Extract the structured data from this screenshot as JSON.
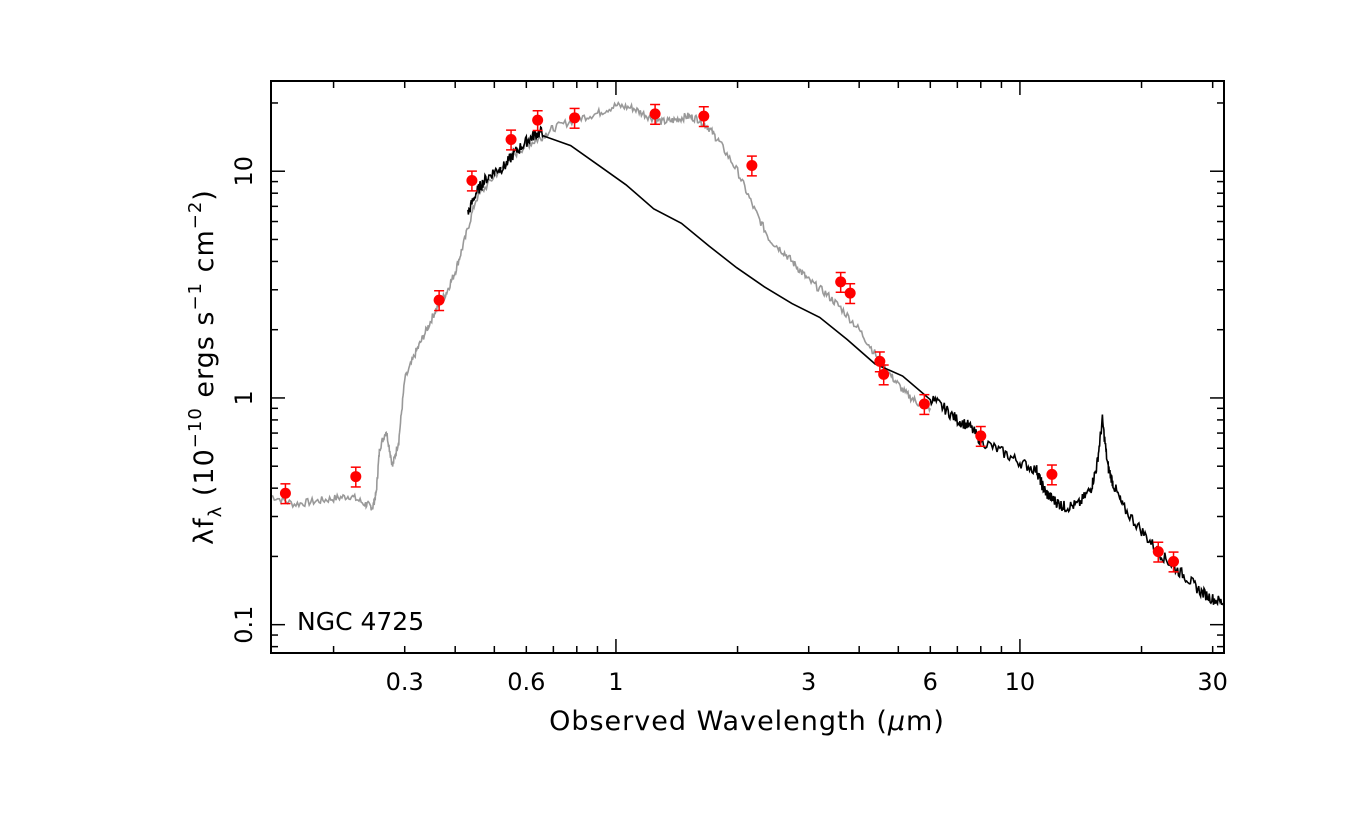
{
  "chart_data": {
    "type": "scatter",
    "title": "",
    "annotation": "NGC 4725",
    "xlabel_parts": {
      "main": "Observed Wavelength (",
      "mu": "μ",
      "unit": "m)"
    },
    "ylabel_parts": {
      "lambda": "λf",
      "sub": "λ",
      "open": " (10",
      "exp1": "−10",
      "mid": " ergs s",
      "exp2": "−1",
      "mid2": " cm",
      "exp3": "−2",
      "close": ")"
    },
    "x_scale": "log",
    "y_scale": "log",
    "xlim": [
      0.14,
      32
    ],
    "ylim": [
      0.075,
      25
    ],
    "x_ticks": [
      {
        "value": 0.3,
        "label": "0.3"
      },
      {
        "value": 0.6,
        "label": "0.6"
      },
      {
        "value": 1,
        "label": "1"
      },
      {
        "value": 3,
        "label": "3"
      },
      {
        "value": 6,
        "label": "6"
      },
      {
        "value": 10,
        "label": "10"
      },
      {
        "value": 30,
        "label": "30"
      }
    ],
    "y_ticks": [
      {
        "value": 0.1,
        "label": "0.1"
      },
      {
        "value": 1,
        "label": "1"
      },
      {
        "value": 10,
        "label": "10"
      }
    ],
    "grid": false,
    "legend": "none",
    "colors": {
      "photometry": "#ff0000",
      "model": "#999999",
      "observed": "#000000"
    },
    "series": [
      {
        "kind": "model",
        "color": "#999999",
        "x": [
          0.14,
          0.16,
          0.18,
          0.2,
          0.22,
          0.24,
          0.25,
          0.255,
          0.26,
          0.27,
          0.28,
          0.29,
          0.3,
          0.32,
          0.34,
          0.36,
          0.38,
          0.4,
          0.42,
          0.45,
          0.5,
          0.55,
          0.6,
          0.65,
          0.7,
          0.8,
          0.9,
          1.0,
          1.1,
          1.2,
          1.3,
          1.4,
          1.5,
          1.6,
          1.7,
          1.8,
          2.0,
          2.2,
          2.4,
          2.6,
          2.8,
          3.0,
          3.3,
          3.6,
          4.0,
          4.4,
          4.8,
          5.2,
          5.6,
          6.0
        ],
        "y": [
          0.37,
          0.34,
          0.35,
          0.36,
          0.37,
          0.34,
          0.33,
          0.38,
          0.6,
          0.72,
          0.5,
          0.65,
          1.2,
          1.6,
          2.0,
          2.5,
          2.9,
          3.6,
          4.8,
          7.5,
          9.5,
          11.5,
          13.0,
          14.0,
          15.5,
          17.0,
          18.0,
          19.5,
          19.0,
          17.5,
          16.5,
          16.8,
          17.5,
          17.0,
          15.5,
          13.5,
          10.0,
          6.8,
          5.0,
          4.4,
          3.8,
          3.3,
          2.9,
          2.5,
          2.0,
          1.55,
          1.25,
          1.05,
          0.95,
          0.9
        ]
      },
      {
        "kind": "observed",
        "color": "#000000",
        "x": [
          0.43,
          0.45,
          0.47,
          0.5,
          0.53,
          0.56,
          0.6,
          0.63,
          0.66,
          6.0,
          6.5,
          7.0,
          7.5,
          8.0,
          9.0,
          10.0,
          11.0,
          11.3,
          11.6,
          12.0,
          12.5,
          13.0,
          14.0,
          15.0,
          15.5,
          16.0,
          16.5,
          17.0,
          18.0,
          20.0,
          22.0,
          24.0,
          26.0,
          28.0,
          30.0,
          32.0
        ],
        "y": [
          6.5,
          8.0,
          9.0,
          10.0,
          10.5,
          12.0,
          13.5,
          14.5,
          15.0,
          1.0,
          0.9,
          0.8,
          0.75,
          0.65,
          0.58,
          0.52,
          0.48,
          0.42,
          0.38,
          0.36,
          0.34,
          0.33,
          0.34,
          0.4,
          0.5,
          0.8,
          0.5,
          0.42,
          0.33,
          0.26,
          0.21,
          0.18,
          0.16,
          0.14,
          0.13,
          0.125
        ]
      },
      {
        "kind": "photometry",
        "color": "#ff0000",
        "x": [
          0.152,
          0.227,
          0.365,
          0.44,
          0.55,
          0.64,
          0.79,
          1.25,
          1.65,
          2.17,
          3.6,
          3.8,
          4.5,
          4.6,
          5.8,
          8.0,
          12.0,
          22.0,
          24.0
        ],
        "y": [
          0.38,
          0.45,
          2.7,
          9.1,
          13.8,
          16.8,
          17.2,
          17.9,
          17.5,
          10.6,
          3.25,
          2.9,
          1.45,
          1.27,
          0.94,
          0.68,
          0.46,
          0.21,
          0.19
        ],
        "yerr_frac": 0.1
      }
    ]
  }
}
